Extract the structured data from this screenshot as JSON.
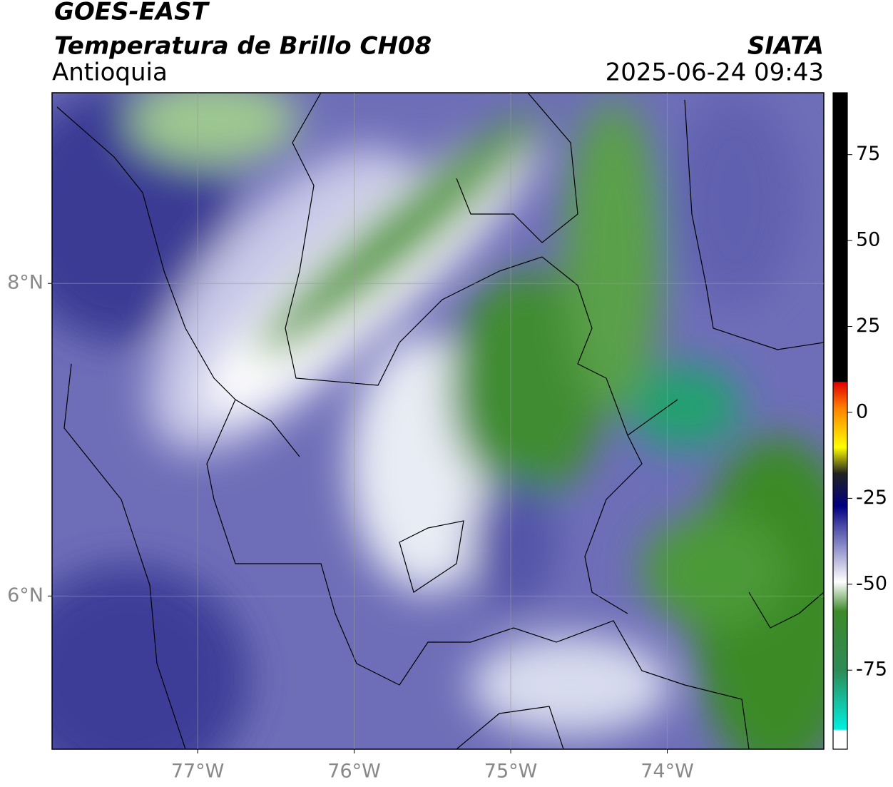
{
  "header": {
    "title": "GOES-EAST",
    "subtitle": "Temperatura de Brillo CH08",
    "region": "Antioquia",
    "source": "SIATA",
    "datetime": "2025-06-24 09:43"
  },
  "map": {
    "xlim": [
      -77.93,
      -73.0
    ],
    "ylim": [
      5.02,
      9.22
    ],
    "xticks": [
      {
        "value": -77,
        "label": "77°W"
      },
      {
        "value": -76,
        "label": "76°W"
      },
      {
        "value": -75,
        "label": "75°W"
      },
      {
        "value": -74,
        "label": "74°W"
      }
    ],
    "yticks": [
      {
        "value": 8,
        "label": "8°N"
      },
      {
        "value": 6,
        "label": "6°N"
      }
    ],
    "grid": true
  },
  "colorbar": {
    "range": [
      -98,
      93
    ],
    "ticks": [
      75,
      50,
      25,
      0,
      -25,
      -50,
      -75
    ]
  }
}
